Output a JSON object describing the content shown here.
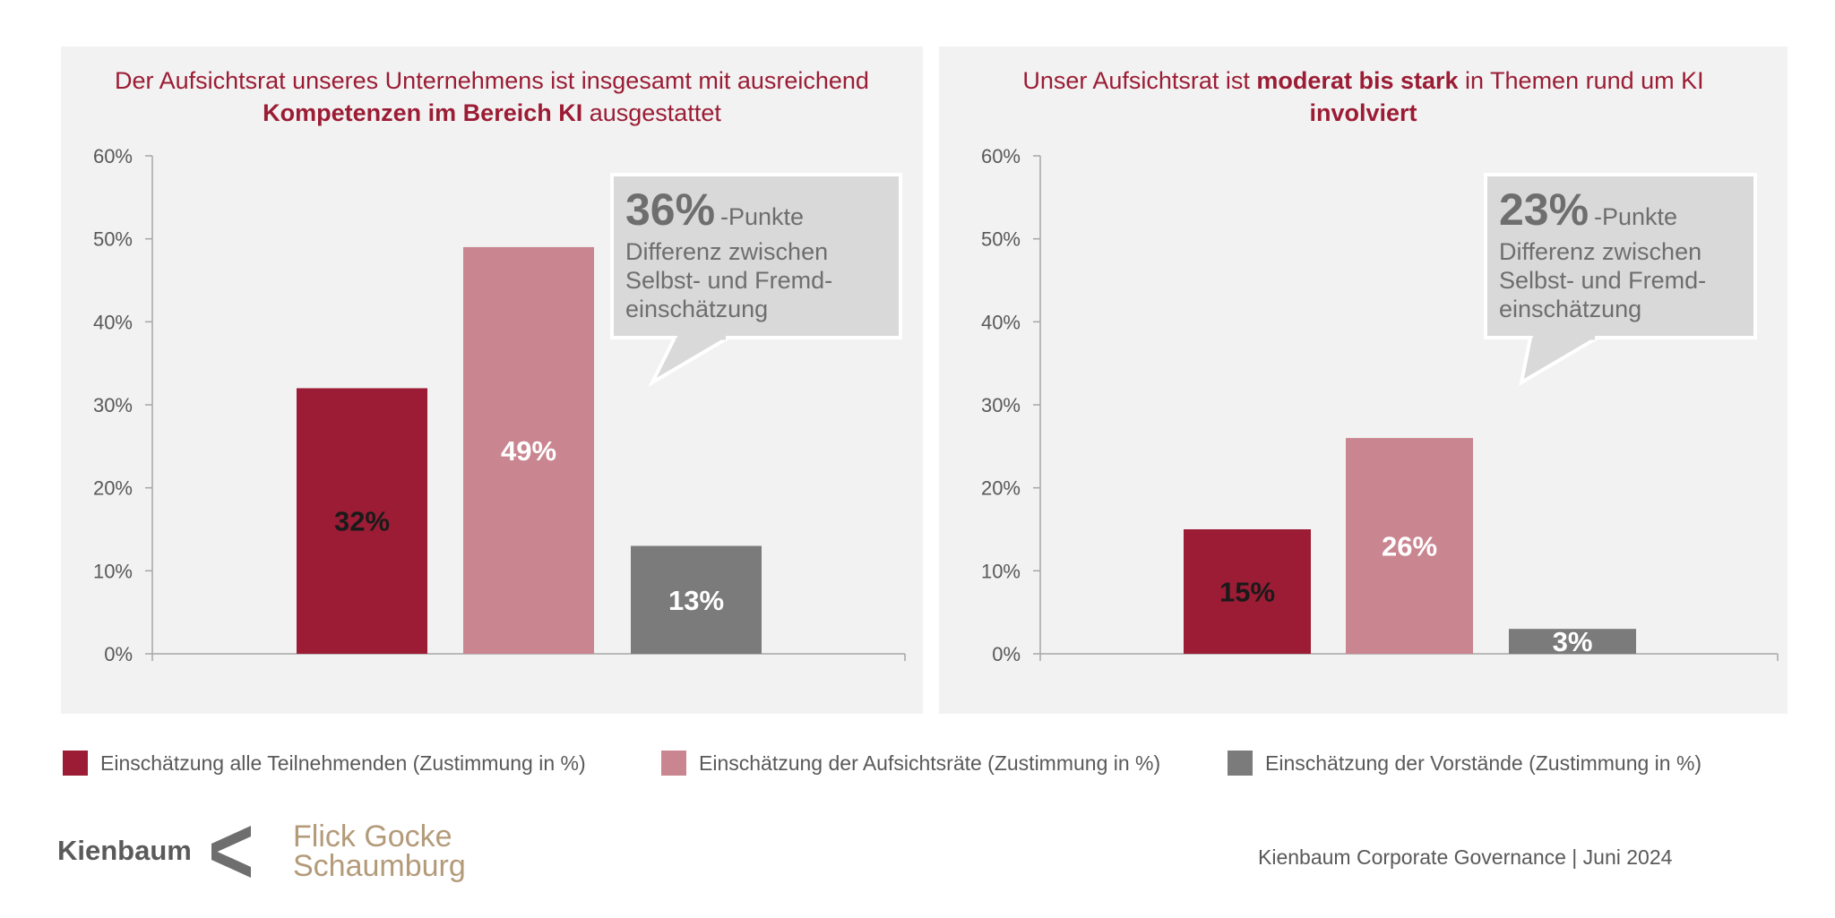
{
  "colors": {
    "all": "#9b1c34",
    "aufsichtsraete": "#c98590",
    "vorstaende": "#7b7b7b",
    "title": "#9b1c34",
    "panel_bg": "#f2f2f2",
    "callout_bg": "#d9d9d9",
    "text_gray": "#595959"
  },
  "chart_data": [
    {
      "type": "bar",
      "title_parts": [
        {
          "text": "Der Aufsichtsrat unseres Unternehmens ist insgesamt mit ausreichend ",
          "bold": false
        },
        {
          "text": "Kompetenzen im Bereich KI",
          "bold": true
        },
        {
          "text": " ausgestattet",
          "bold": false
        }
      ],
      "ylim": [
        0,
        60
      ],
      "yticks": [
        "0%",
        "10%",
        "20%",
        "30%",
        "40%",
        "50%",
        "60%"
      ],
      "grid": false,
      "series": [
        {
          "name": "Einschätzung alle Teilnehmenden (Zustimmung in %)",
          "value": 32,
          "label": "32%"
        },
        {
          "name": "Einschätzung der Aufsichtsräte (Zustimmung in %)",
          "value": 49,
          "label": "49%"
        },
        {
          "name": "Einschätzung der Vorstände (Zustimmung in %)",
          "value": 13,
          "label": "13%"
        }
      ],
      "callout": {
        "big": "36%",
        "small": "-Punkte",
        "lines": [
          "Differenz zwischen",
          "Selbst- und Fremd-",
          "einschätzung"
        ]
      }
    },
    {
      "type": "bar",
      "title_parts": [
        {
          "text": "Unser Aufsichtsrat ist ",
          "bold": false
        },
        {
          "text": "moderat bis stark",
          "bold": true
        },
        {
          "text": " in Themen rund um KI ",
          "bold": false
        },
        {
          "text": "involviert",
          "bold": true
        }
      ],
      "ylim": [
        0,
        60
      ],
      "yticks": [
        "0%",
        "10%",
        "20%",
        "30%",
        "40%",
        "50%",
        "60%"
      ],
      "grid": false,
      "series": [
        {
          "name": "Einschätzung alle Teilnehmenden (Zustimmung in %)",
          "value": 15,
          "label": "15%"
        },
        {
          "name": "Einschätzung der Aufsichtsräte (Zustimmung in %)",
          "value": 26,
          "label": "26%"
        },
        {
          "name": "Einschätzung der Vorstände (Zustimmung in %)",
          "value": 3,
          "label": "3%"
        }
      ],
      "callout": {
        "big": "23%",
        "small": "-Punkte",
        "lines": [
          "Differenz zwischen",
          "Selbst- und Fremd-",
          "einschätzung"
        ]
      }
    }
  ],
  "legend": [
    {
      "label": "Einschätzung alle Teilnehmenden (Zustimmung in %)",
      "color": "#9b1c34"
    },
    {
      "label": "Einschätzung der Aufsichtsräte (Zustimmung in %)",
      "color": "#c98590"
    },
    {
      "label": "Einschätzung der Vorstände (Zustimmung in %)",
      "color": "#7b7b7b"
    }
  ],
  "footer": {
    "logo_kienbaum": "Kienbaum",
    "logo_fgs_line1": "Flick Gocke",
    "logo_fgs_line2": "Schaumburg",
    "source": "Kienbaum Corporate Governance | Juni 2024"
  }
}
